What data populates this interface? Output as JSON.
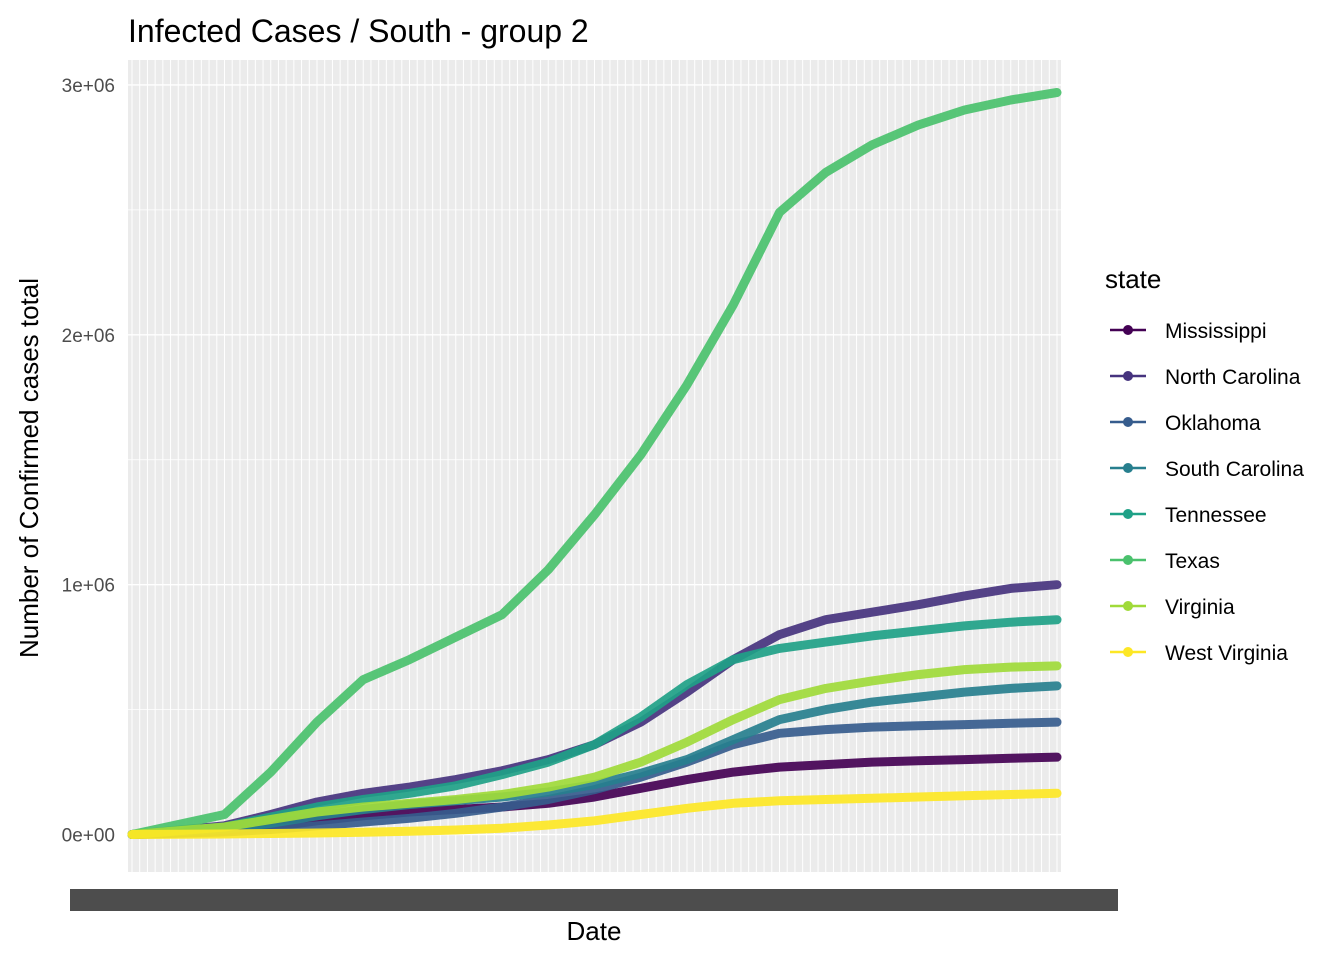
{
  "chart_data": {
    "type": "line",
    "title": "Infected Cases / South - group 2",
    "xlabel": "Date",
    "ylabel": "Number of Confirmed cases total",
    "grid": true,
    "legend_title": "state",
    "legend_position": "right",
    "x_tick_labels_note": "x-axis tick labels are overplotted and unreadable",
    "x": [
      0,
      0.1,
      0.15,
      0.2,
      0.25,
      0.3,
      0.35,
      0.4,
      0.45,
      0.5,
      0.55,
      0.6,
      0.65,
      0.7,
      0.75,
      0.8,
      0.85,
      0.9,
      0.95,
      1.0
    ],
    "yticks": [
      0,
      1000000,
      2000000,
      3000000
    ],
    "ytick_labels": [
      "0e+00",
      "1e+06",
      "2e+06",
      "3e+06"
    ],
    "ylim": [
      -150000,
      3100000
    ],
    "series": [
      {
        "name": "Mississippi",
        "color": "#440154",
        "values": [
          0,
          15000,
          30000,
          55000,
          75000,
          90000,
          100000,
          110000,
          125000,
          150000,
          185000,
          220000,
          250000,
          270000,
          280000,
          290000,
          295000,
          300000,
          305000,
          310000
        ]
      },
      {
        "name": "North Carolina",
        "color": "#46337e",
        "values": [
          0,
          35000,
          80000,
          130000,
          165000,
          190000,
          220000,
          255000,
          300000,
          360000,
          450000,
          570000,
          700000,
          800000,
          860000,
          890000,
          920000,
          955000,
          985000,
          1000000
        ]
      },
      {
        "name": "Oklahoma",
        "color": "#365c8d",
        "values": [
          0,
          10000,
          20000,
          35000,
          50000,
          65000,
          85000,
          110000,
          140000,
          180000,
          230000,
          290000,
          360000,
          405000,
          420000,
          430000,
          435000,
          440000,
          445000,
          450000
        ]
      },
      {
        "name": "South Carolina",
        "color": "#277f8e",
        "values": [
          0,
          20000,
          45000,
          75000,
          100000,
          120000,
          135000,
          150000,
          170000,
          200000,
          245000,
          300000,
          380000,
          460000,
          500000,
          530000,
          550000,
          570000,
          585000,
          595000
        ]
      },
      {
        "name": "Tennessee",
        "color": "#1fa187",
        "values": [
          0,
          30000,
          70000,
          110000,
          140000,
          165000,
          195000,
          240000,
          290000,
          360000,
          470000,
          600000,
          700000,
          745000,
          770000,
          795000,
          815000,
          835000,
          850000,
          860000
        ]
      },
      {
        "name": "Texas",
        "color": "#4ac16d",
        "values": [
          0,
          80000,
          250000,
          450000,
          620000,
          700000,
          790000,
          880000,
          1060000,
          1280000,
          1520000,
          1800000,
          2120000,
          2490000,
          2650000,
          2760000,
          2840000,
          2900000,
          2940000,
          2970000
        ]
      },
      {
        "name": "Virginia",
        "color": "#a0da39",
        "values": [
          0,
          30000,
          60000,
          90000,
          110000,
          125000,
          140000,
          160000,
          190000,
          230000,
          290000,
          370000,
          460000,
          540000,
          585000,
          615000,
          640000,
          660000,
          670000,
          675000
        ]
      },
      {
        "name": "West Virginia",
        "color": "#fde725",
        "values": [
          0,
          2000,
          4000,
          6000,
          9000,
          13000,
          18000,
          25000,
          38000,
          55000,
          80000,
          105000,
          125000,
          135000,
          140000,
          145000,
          150000,
          155000,
          160000,
          165000
        ]
      }
    ]
  }
}
